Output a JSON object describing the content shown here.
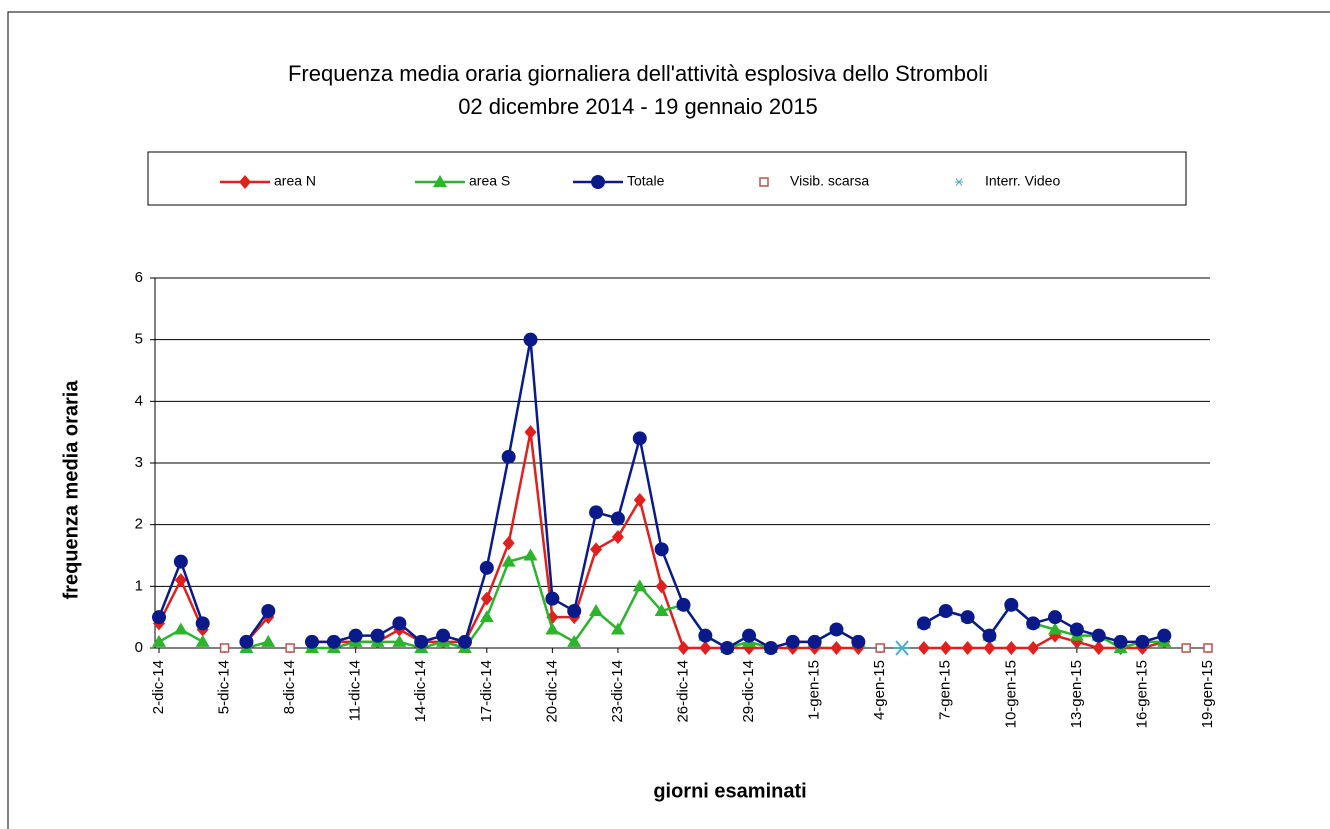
{
  "chart_data": {
    "type": "line",
    "title": "Frequenza media oraria giornaliera dell'attività esplosiva dello Stromboli",
    "subtitle": "02 dicembre 2014 - 19 gennaio 2015",
    "y_label": "frequenza media oraria",
    "x_label": "giorni esaminati",
    "categories": [
      "2-dic-14",
      null,
      null,
      "5-dic-14",
      null,
      null,
      "8-dic-14",
      null,
      null,
      "11-dic-14",
      null,
      null,
      "14-dic-14",
      null,
      null,
      "17-dic-14",
      null,
      null,
      "20-dic-14",
      null,
      null,
      "23-dic-14",
      null,
      null,
      "26-dic-14",
      null,
      null,
      "29-dic-14",
      null,
      null,
      "1-gen-15",
      null,
      null,
      "4-gen-15",
      null,
      null,
      "7-gen-15",
      null,
      null,
      "10-gen-15",
      null,
      null,
      "13-gen-15",
      null,
      null,
      "16-gen-15",
      null,
      null,
      "19-gen-15"
    ],
    "ylim": [
      0,
      6
    ],
    "yticks": [
      0,
      1,
      2,
      3,
      4,
      5,
      6
    ],
    "grid": true,
    "series": [
      {
        "name": "area N",
        "color": "#e0201c",
        "marker": "diamond",
        "line": true,
        "values": [
          0.4,
          1.1,
          0.3,
          null,
          0.1,
          0.5,
          null,
          0.1,
          0.1,
          0.1,
          0.1,
          0.3,
          0.1,
          0.1,
          0.1,
          0.8,
          1.7,
          3.5,
          0.5,
          0.5,
          1.6,
          1.8,
          2.4,
          1.0,
          0,
          0,
          0,
          0,
          0,
          0,
          0,
          0,
          0,
          null,
          null,
          0,
          0,
          0,
          0,
          0,
          0,
          0.2,
          0.1,
          0,
          0,
          0,
          0.1,
          null,
          null
        ]
      },
      {
        "name": "area S",
        "color": "#2cb52c",
        "marker": "triangle",
        "line": true,
        "values": [
          0.1,
          0.3,
          0.1,
          null,
          0,
          0.1,
          null,
          0,
          0,
          0.1,
          0.1,
          0.1,
          0,
          0.1,
          0,
          0.5,
          1.4,
          1.5,
          0.3,
          0.1,
          0.6,
          0.3,
          1.0,
          0.6,
          0.7,
          0.2,
          0,
          0.1,
          0,
          0.1,
          0.1,
          0.3,
          0.1,
          null,
          null,
          0.4,
          0.6,
          0.5,
          0.2,
          0.7,
          0.4,
          0.3,
          0.2,
          0.2,
          0,
          0.1,
          0.1,
          null,
          null
        ]
      },
      {
        "name": "Totale",
        "color": "#0a1a8a",
        "marker": "circle",
        "line": true,
        "values": [
          0.5,
          1.4,
          0.4,
          null,
          0.1,
          0.6,
          null,
          0.1,
          0.1,
          0.2,
          0.2,
          0.4,
          0.1,
          0.2,
          0.1,
          1.3,
          3.1,
          5.0,
          0.8,
          0.6,
          2.2,
          2.1,
          3.4,
          1.6,
          0.7,
          0.2,
          0,
          0.2,
          0,
          0.1,
          0.1,
          0.3,
          0.1,
          null,
          null,
          0.4,
          0.6,
          0.5,
          0.2,
          0.7,
          0.4,
          0.5,
          0.3,
          0.2,
          0.1,
          0.1,
          0.2,
          null,
          null
        ]
      },
      {
        "name": "Visib. scarsa",
        "color": "#c0504d",
        "marker": "square",
        "line": false,
        "values": [
          null,
          null,
          null,
          0,
          null,
          null,
          0,
          null,
          null,
          null,
          null,
          null,
          null,
          null,
          null,
          null,
          null,
          null,
          null,
          null,
          null,
          null,
          null,
          null,
          null,
          null,
          null,
          null,
          null,
          null,
          null,
          null,
          null,
          0,
          null,
          null,
          null,
          null,
          null,
          null,
          null,
          null,
          null,
          null,
          null,
          null,
          null,
          0,
          0
        ]
      },
      {
        "name": "Interr. Video",
        "color": "#4bacc6",
        "marker": "asterisk",
        "line": false,
        "values": [
          null,
          null,
          null,
          null,
          null,
          null,
          null,
          null,
          null,
          null,
          null,
          null,
          null,
          null,
          null,
          null,
          null,
          null,
          null,
          null,
          null,
          null,
          null,
          null,
          null,
          null,
          null,
          null,
          null,
          null,
          null,
          null,
          null,
          null,
          0,
          null,
          null,
          null,
          null,
          null,
          null,
          null,
          null,
          null,
          null,
          null,
          null,
          null,
          null
        ]
      }
    ]
  }
}
